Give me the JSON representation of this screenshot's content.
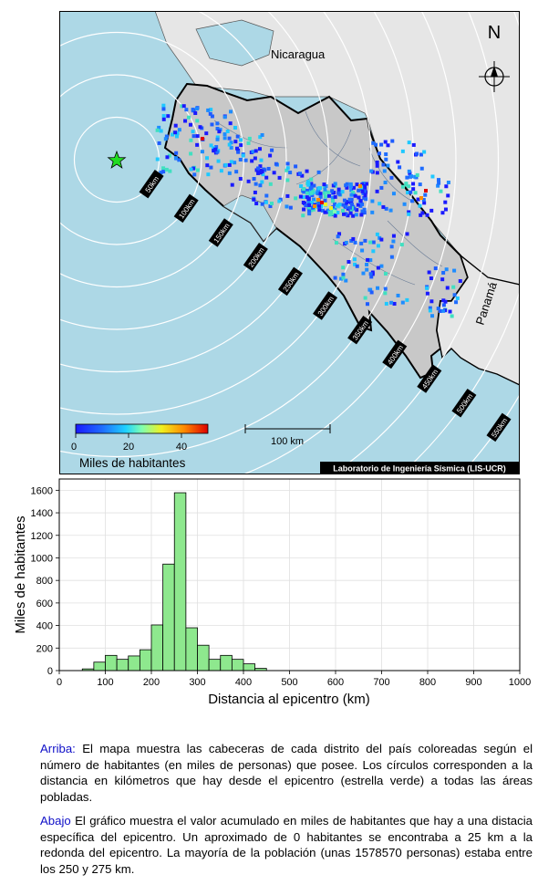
{
  "map": {
    "country_labels": [
      "Nicaragua",
      "Panamá"
    ],
    "north_label": "N",
    "ring_labels": [
      "50km",
      "100km",
      "150km",
      "200km",
      "250km",
      "300km",
      "350km",
      "400km",
      "450km",
      "500km",
      "550km"
    ],
    "ring_distances_km": [
      50,
      100,
      150,
      200,
      250,
      300,
      350,
      400,
      450,
      500,
      550
    ],
    "scale_bar": "100 km",
    "credit": "Laboratorio de Ingeniería Sísmica (LIS-UCR)",
    "colorbar": {
      "ticks": [
        "0",
        "20",
        "40"
      ],
      "title": "Miles de habitantes",
      "range": [
        0,
        50
      ]
    },
    "colors": {
      "sea": "#add8e6",
      "land": "#e6e6e6",
      "costa_rica": "#c8c8c8",
      "star": "#22dd22"
    }
  },
  "chart_data": {
    "type": "bar",
    "xlabel": "Distancia al epicentro (km)",
    "ylabel": "Miles de habitantes",
    "xlim": [
      0,
      1000
    ],
    "ylim": [
      0,
      1700
    ],
    "xticks": [
      0,
      100,
      200,
      300,
      400,
      500,
      600,
      700,
      800,
      900,
      1000
    ],
    "yticks": [
      0,
      200,
      400,
      600,
      800,
      1000,
      1200,
      1400,
      1600
    ],
    "bin_width_km": 25,
    "x": [
      50,
      75,
      100,
      125,
      150,
      175,
      200,
      225,
      250,
      275,
      300,
      325,
      350,
      375,
      400,
      425
    ],
    "values": [
      15,
      75,
      135,
      100,
      130,
      185,
      405,
      945,
      1578,
      380,
      225,
      100,
      135,
      100,
      60,
      20
    ],
    "bar_color": "#8ee88e",
    "grid": true
  },
  "caption": {
    "p1_lead": "Arriba:",
    "p1_text": " El mapa muestra las cabeceras de cada distrito del país coloreadas según el número de habitantes (en miles de personas) que posee.  Los círculos corresponden a la distancia en kilómetros que hay desde el epicentro (estrella verde) a todas las áreas pobladas.",
    "p2_lead": "Abajo",
    "p2_text": " El gráfico muestra el valor acumulado en miles de habitantes que hay a una distacia específica del epicentro.  Un aproximado de 0 habitantes se encontraba a 25 km a la redonda del epicentro.  La mayoría de la población (unas 1578570 personas) estaba entre los 250 y 275 km."
  }
}
